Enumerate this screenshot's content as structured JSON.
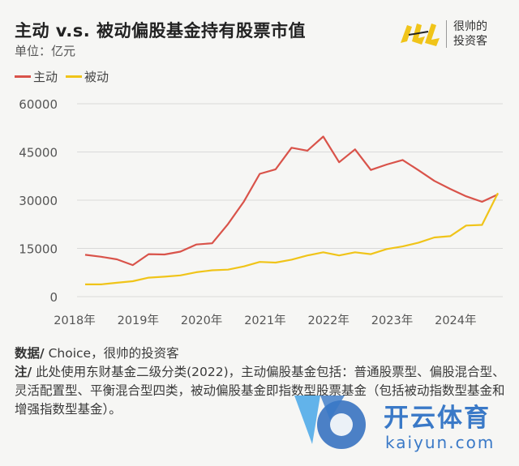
{
  "header": {
    "title": "主动 v.s. 被动偏股基金持有股票市值",
    "unit": "单位：亿元"
  },
  "logo": {
    "line1": "很帅的",
    "line2": "投资客"
  },
  "chart_data": {
    "type": "line",
    "title": "主动 v.s. 被动偏股基金持有股票市值",
    "ylabel": "单位：亿元",
    "ylim": [
      0,
      60000
    ],
    "yticks": [
      "60000",
      "45000",
      "30000",
      "15000",
      "0"
    ],
    "xticks": [
      "2018年",
      "2019年",
      "2020年",
      "2021年",
      "2022年",
      "2023年",
      "2024年"
    ],
    "legend_position": "top-left",
    "grid": true,
    "x": [
      "2018Q1",
      "2018Q2",
      "2018Q3",
      "2018Q4",
      "2019Q1",
      "2019Q2",
      "2019Q3",
      "2019Q4",
      "2020Q1",
      "2020Q2",
      "2020Q3",
      "2020Q4",
      "2021Q1",
      "2021Q2",
      "2021Q3",
      "2021Q4",
      "2022Q1",
      "2022Q2",
      "2022Q3",
      "2022Q4",
      "2023Q1",
      "2023Q2",
      "2023Q3",
      "2023Q4",
      "2024Q1",
      "2024Q2",
      "2024Q3"
    ],
    "series": [
      {
        "name": "主动",
        "color": "#d9534a",
        "values": [
          13000,
          12400,
          11600,
          9800,
          13200,
          13100,
          14000,
          16200,
          16600,
          22600,
          29600,
          38200,
          39600,
          46300,
          45400,
          49800,
          41800,
          45800,
          39400,
          41100,
          42500,
          39300,
          36000,
          33500,
          31200,
          29500,
          31800
        ]
      },
      {
        "name": "被动",
        "color": "#f0c419",
        "values": [
          3800,
          3800,
          4300,
          4800,
          5900,
          6200,
          6600,
          7600,
          8200,
          8400,
          9400,
          10800,
          10600,
          11500,
          12800,
          13800,
          12800,
          13800,
          13200,
          14800,
          15600,
          16800,
          18400,
          18800,
          22100,
          22300,
          32200
        ]
      }
    ]
  },
  "notes": {
    "source_label": "数据/",
    "source_text": " Choice，很帅的投资客",
    "note_label": "注/",
    "note_text": " 此处使用东财基金二级分类(2022)，主动偏股基金包括：普通股票型、偏股混合型、灵活配置型、平衡混合型四类，被动偏股基金即指数型股票基金（包括被动指数型基金和增强指数型基金）。"
  },
  "watermark": {
    "name": "开云体育",
    "url": "kaiyun.com"
  }
}
